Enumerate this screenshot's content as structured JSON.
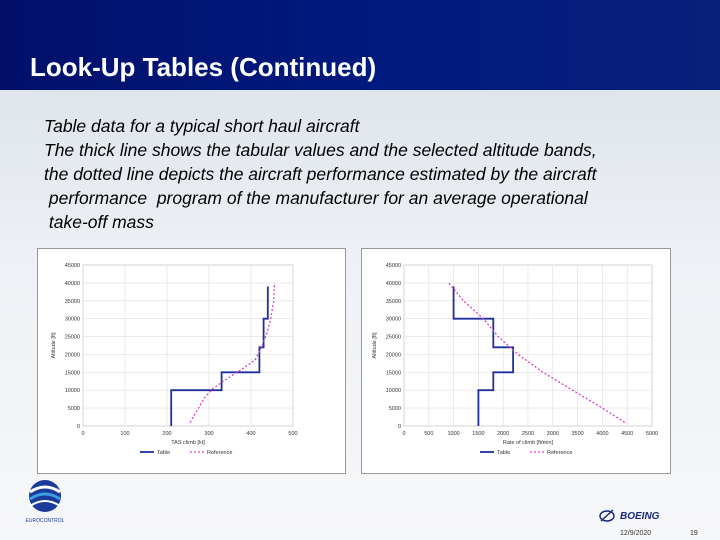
{
  "slide": {
    "title": "Look-Up Tables (Continued)",
    "body_lines": [
      "Table data for a typical short haul aircraft",
      "The thick line shows the tabular values and the selected altitude bands,",
      "the dotted line depicts the aircraft performance estimated by the aircraft",
      " performance  program of the manufacturer for an average operational",
      " take-off mass"
    ],
    "logo_left_text": "EUROCONTROL",
    "boeing_text": "BOEING",
    "date": "12/9/2020",
    "page": "19",
    "colors": {
      "header": "#001a80",
      "table": "#1f2f9c",
      "reference": "#d940c8"
    }
  },
  "chart_data": [
    {
      "type": "line",
      "xlabel": "TAS climb [kt]",
      "ylabel": "Altitude [ft]",
      "xlim": [
        0,
        500
      ],
      "ylim": [
        0,
        45000
      ],
      "x_ticks": [
        "0",
        "100",
        "200",
        "300",
        "400",
        "500"
      ],
      "y_ticks": [
        "0",
        "5000",
        "10000",
        "15000",
        "20000",
        "25000",
        "30000",
        "35000",
        "40000",
        "45000"
      ],
      "legend_position": "bottom",
      "series": [
        {
          "name": "Table",
          "style": "solid",
          "points": [
            [
              210,
              0
            ],
            [
              210,
              10000
            ],
            [
              330,
              10000
            ],
            [
              330,
              15000
            ],
            [
              420,
              15000
            ],
            [
              420,
              22000
            ],
            [
              430,
              22000
            ],
            [
              430,
              30000
            ],
            [
              440,
              30000
            ],
            [
              440,
              39000
            ]
          ]
        },
        {
          "name": "Reference",
          "style": "dotted",
          "points": [
            [
              255,
              1000
            ],
            [
              270,
              4000
            ],
            [
              290,
              8000
            ],
            [
              310,
              10500
            ],
            [
              340,
              13000
            ],
            [
              380,
              16000
            ],
            [
              410,
              18500
            ],
            [
              425,
              22000
            ],
            [
              438,
              26000
            ],
            [
              447,
              30000
            ],
            [
              454,
              35000
            ],
            [
              456,
              40000
            ]
          ]
        }
      ]
    },
    {
      "type": "line",
      "xlabel": "Rate of climb [ft/min]",
      "ylabel": "Altitude [ft]",
      "xlim": [
        0,
        5000
      ],
      "ylim": [
        0,
        45000
      ],
      "x_ticks": [
        "0",
        "500",
        "1000",
        "1500",
        "2000",
        "2500",
        "3000",
        "3500",
        "4000",
        "4500",
        "5000"
      ],
      "y_ticks": [
        "0",
        "5000",
        "10000",
        "15000",
        "20000",
        "25000",
        "30000",
        "35000",
        "40000",
        "45000"
      ],
      "legend_position": "bottom",
      "series": [
        {
          "name": "Table",
          "style": "solid",
          "points": [
            [
              1500,
              0
            ],
            [
              1500,
              10000
            ],
            [
              1800,
              10000
            ],
            [
              1800,
              15000
            ],
            [
              2200,
              15000
            ],
            [
              2200,
              22000
            ],
            [
              1800,
              22000
            ],
            [
              1800,
              30000
            ],
            [
              1000,
              30000
            ],
            [
              1000,
              39000
            ]
          ]
        },
        {
          "name": "Reference",
          "style": "dotted",
          "points": [
            [
              4450,
              1000
            ],
            [
              4000,
              5000
            ],
            [
              3400,
              10000
            ],
            [
              2800,
              15000
            ],
            [
              2300,
              20000
            ],
            [
              1900,
              25000
            ],
            [
              1600,
              30000
            ],
            [
              1200,
              35000
            ],
            [
              900,
              40000
            ]
          ]
        }
      ]
    }
  ]
}
